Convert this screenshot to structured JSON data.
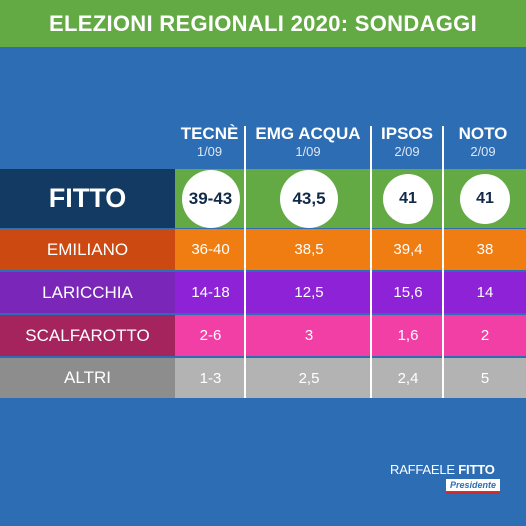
{
  "title": "ELEZIONI REGIONALI 2020: SONDAGGI",
  "colors": {
    "background": "#2d6db4",
    "title_bar": "#63a944",
    "fitto_name": "#123a63",
    "fitto_cells": "#63a944",
    "emiliano": "#f07d12",
    "emiliano_name": "#cc4a12",
    "laricchia": "#8d22d6",
    "laricchia_name": "#7a26b8",
    "scalfarotto": "#f23fa6",
    "scalfarotto_name": "#a6245d",
    "altri": "#b3b3b3",
    "altri_name": "#8d8d8d"
  },
  "institutes": [
    {
      "name": "TECNÈ",
      "date": "1/09"
    },
    {
      "name": "EMG ACQUA",
      "date": "1/09"
    },
    {
      "name": "IPSOS",
      "date": "2/09"
    },
    {
      "name": "NOTO",
      "date": "2/09"
    }
  ],
  "candidates": [
    {
      "name": "FITTO",
      "values": [
        "39-43",
        "43,5",
        "41",
        "41"
      ]
    },
    {
      "name": "EMILIANO",
      "values": [
        "36-40",
        "38,5",
        "39,4",
        "38"
      ]
    },
    {
      "name": "LARICCHIA",
      "values": [
        "14-18",
        "12,5",
        "15,6",
        "14"
      ]
    },
    {
      "name": "SCALFAROTTO",
      "values": [
        "2-6",
        "3",
        "1,6",
        "2"
      ]
    },
    {
      "name": "ALTRI",
      "values": [
        "1-3",
        "2,5",
        "2,4",
        "5"
      ]
    }
  ],
  "logo": {
    "first": "RAFFAELE",
    "last": "FITTO",
    "role": "Presidente"
  }
}
